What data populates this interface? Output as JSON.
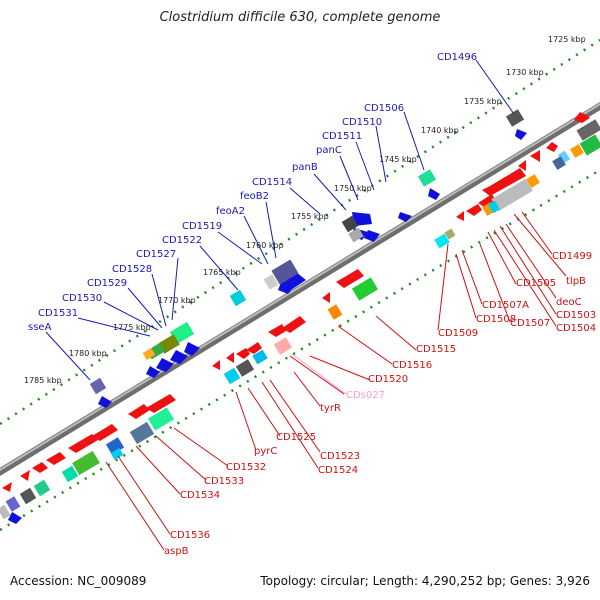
{
  "title": "Clostridium difficile 630, complete genome",
  "accession_text": "Accession: NC_009089",
  "summary_text": "Topology: circular; Length: 4,290,252 bp; Genes: 3,926",
  "colors": {
    "axis_dark": "#7a7a7a",
    "axis_light": "#d0d0d0",
    "ruler": "#228822",
    "forward_gene": "#1010dd",
    "reverse_gene": "#ee1111",
    "reverse_rna": "#f5a0cc",
    "forward_label": "#1a1ab0",
    "reverse_label": "#cc1111"
  },
  "kbp_ticks": [
    "1725 kbp",
    "1730 kbp",
    "1735 kbp",
    "1740 kbp",
    "1745 kbp",
    "1750 kbp",
    "1755 kbp",
    "1760 kbp",
    "1765 kbp",
    "1770 kbp",
    "1775 kbp",
    "1780 kbp",
    "1785 kbp"
  ],
  "forward_labels": [
    "CD1496",
    "CD1506",
    "CD1510",
    "CD1511",
    "panC",
    "panB",
    "CD1514",
    "feoB2",
    "feoA2",
    "CD1519",
    "CD1522",
    "CD1527",
    "CD1528",
    "CD1529",
    "CD1530",
    "CD1531",
    "sseA"
  ],
  "reverse_labels": [
    "CD1499",
    "tlpB",
    "deoC",
    "CD1503",
    "CD1504",
    "CD1505",
    "CD1507",
    "CD1507A",
    "CD1508",
    "CD1509",
    "CD1515",
    "CD1516",
    "CD1520",
    "CDs027",
    "tyrR",
    "CD1523",
    "CD1524",
    "CD1525",
    "pyrC",
    "CD1532",
    "CD1533",
    "CD1534",
    "CD1536",
    "aspB"
  ]
}
